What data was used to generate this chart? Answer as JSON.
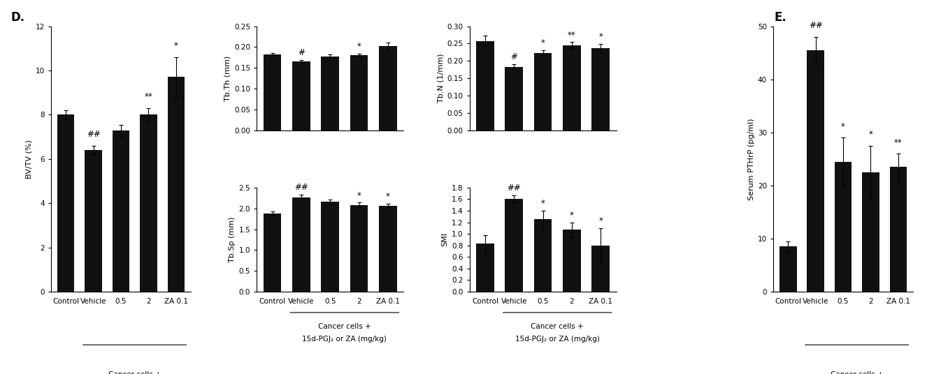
{
  "categories": [
    "Control",
    "Vehicle",
    "0.5",
    "2",
    "ZA 0.1"
  ],
  "xlabel_line1": "Cancer cells +",
  "xlabel_line2": "15d-PGJ₂ or ZA (mg/kg)",
  "bvtv": {
    "values": [
      8.0,
      6.4,
      7.3,
      8.0,
      9.7
    ],
    "errors": [
      0.2,
      0.2,
      0.25,
      0.3,
      0.9
    ],
    "ylabel": "BV/TV (%)",
    "ylim": [
      0,
      12
    ],
    "yticks": [
      0,
      2,
      4,
      6,
      8,
      10,
      12
    ],
    "annotations": [
      "",
      "##",
      "",
      "**",
      "*"
    ]
  },
  "tbth": {
    "values": [
      0.182,
      0.165,
      0.178,
      0.181,
      0.202
    ],
    "errors": [
      0.003,
      0.004,
      0.004,
      0.003,
      0.008
    ],
    "ylabel": "Tb.Th (mm)",
    "ylim": [
      0,
      0.25
    ],
    "yticks": [
      0,
      0.05,
      0.1,
      0.15,
      0.2,
      0.25
    ],
    "annotations": [
      "",
      "#",
      "",
      "*",
      ""
    ]
  },
  "tbsp": {
    "values": [
      1.88,
      2.27,
      2.16,
      2.08,
      2.07
    ],
    "errors": [
      0.05,
      0.06,
      0.06,
      0.06,
      0.05
    ],
    "ylabel": "Tb.Sp (mm)",
    "ylim": [
      0,
      2.5
    ],
    "yticks": [
      0,
      0.5,
      1.0,
      1.5,
      2.0,
      2.5
    ],
    "annotations": [
      "",
      "##",
      "",
      "*",
      "*"
    ]
  },
  "tbn": {
    "values": [
      0.257,
      0.183,
      0.223,
      0.244,
      0.236
    ],
    "errors": [
      0.015,
      0.008,
      0.008,
      0.01,
      0.013
    ],
    "ylabel": "Tb.N (1/mm)",
    "ylim": [
      0,
      0.3
    ],
    "yticks": [
      0,
      0.05,
      0.1,
      0.15,
      0.2,
      0.25,
      0.3
    ],
    "annotations": [
      "",
      "#",
      "*",
      "**",
      "*"
    ]
  },
  "smi": {
    "values": [
      0.83,
      1.61,
      1.25,
      1.07,
      0.8
    ],
    "errors": [
      0.15,
      0.06,
      0.15,
      0.13,
      0.3
    ],
    "ylabel": "SMI",
    "ylim": [
      0,
      1.8
    ],
    "yticks": [
      0,
      0.2,
      0.4,
      0.6,
      0.8,
      1.0,
      1.2,
      1.4,
      1.6,
      1.8
    ],
    "annotations": [
      "",
      "##",
      "*",
      "*",
      "*"
    ]
  },
  "pthrp": {
    "values": [
      8.5,
      45.5,
      24.5,
      22.5,
      23.5
    ],
    "errors": [
      1.0,
      2.5,
      4.5,
      5.0,
      2.5
    ],
    "ylabel": "Serum PTHrP (pg/ml)",
    "ylim": [
      0,
      50
    ],
    "yticks": [
      0,
      10,
      20,
      30,
      40,
      50
    ],
    "annotations": [
      "",
      "##",
      "*",
      "*",
      "**"
    ]
  },
  "bar_color": "#111111",
  "label_d": "D.",
  "label_e": "E."
}
